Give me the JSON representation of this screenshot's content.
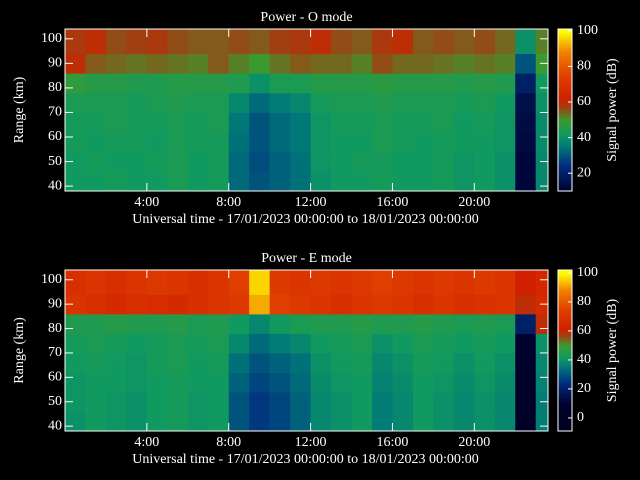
{
  "chart_data": [
    {
      "type": "heatmap",
      "title": "Power - O mode",
      "xlabel": "Universal time - 17/01/2023 00:00:00 to 18/01/2023 00:00:00",
      "ylabel": "Range (km)",
      "colorbar_label": "Signal power (dB)",
      "xlim": [
        0,
        23.6
      ],
      "xticks": [
        {
          "value": 4,
          "label": "4:00"
        },
        {
          "value": 8,
          "label": "8:00"
        },
        {
          "value": 12,
          "label": "12:00"
        },
        {
          "value": 16,
          "label": "16:00"
        },
        {
          "value": 20,
          "label": "20:00"
        }
      ],
      "ylim": [
        38,
        104
      ],
      "yticks": [
        40,
        50,
        60,
        70,
        80,
        90,
        100
      ],
      "zlim": [
        10,
        101
      ],
      "zticks": [
        20,
        40,
        60,
        80,
        100
      ],
      "colorscale": [
        [
          0,
          "#000020"
        ],
        [
          10,
          "#000030"
        ],
        [
          25,
          "#003080"
        ],
        [
          35,
          "#007878"
        ],
        [
          42,
          "#109a60"
        ],
        [
          50,
          "#3a9a30"
        ],
        [
          57,
          "#a04010"
        ],
        [
          62,
          "#d02000"
        ],
        [
          75,
          "#e04000"
        ],
        [
          88,
          "#f08000"
        ],
        [
          100,
          "#ffff00"
        ]
      ],
      "x_edges": [
        0,
        1,
        2,
        3,
        4,
        5,
        6,
        7,
        8,
        9,
        10,
        11,
        12,
        13,
        14,
        15,
        16,
        17,
        18,
        19,
        20,
        21,
        22,
        23,
        23.6
      ],
      "y_edges": [
        38,
        46,
        54,
        62,
        70,
        78,
        86,
        94,
        104
      ],
      "z": [
        [
          42,
          42,
          43,
          42,
          42,
          44,
          42,
          43,
          33,
          30,
          32,
          34,
          40,
          42,
          42,
          43,
          42,
          42,
          43,
          41,
          42,
          40,
          12,
          38
        ],
        [
          42,
          43,
          42,
          42,
          43,
          44,
          42,
          43,
          33,
          29,
          32,
          34,
          41,
          42,
          43,
          43,
          42,
          42,
          43,
          41,
          42,
          40,
          12,
          38
        ],
        [
          43,
          42,
          43,
          43,
          42,
          44,
          43,
          43,
          34,
          30,
          33,
          35,
          41,
          42,
          42,
          44,
          43,
          42,
          43,
          42,
          42,
          41,
          13,
          39
        ],
        [
          43,
          43,
          44,
          43,
          43,
          44,
          43,
          44,
          35,
          30,
          33,
          35,
          41,
          43,
          43,
          44,
          43,
          43,
          44,
          42,
          43,
          41,
          14,
          39
        ],
        [
          44,
          44,
          44,
          43,
          44,
          45,
          44,
          44,
          38,
          33,
          36,
          38,
          43,
          44,
          44,
          45,
          44,
          44,
          44,
          43,
          44,
          42,
          15,
          40
        ],
        [
          48,
          46,
          46,
          45,
          45,
          46,
          46,
          46,
          45,
          40,
          44,
          44,
          46,
          46,
          46,
          47,
          46,
          46,
          46,
          45,
          46,
          45,
          20,
          42
        ],
        [
          60,
          55,
          54,
          53,
          54,
          53,
          52,
          55,
          52,
          50,
          53,
          55,
          54,
          54,
          52,
          56,
          54,
          54,
          53,
          52,
          53,
          52,
          30,
          50
        ],
        [
          58,
          60,
          56,
          57,
          58,
          56,
          55,
          55,
          56,
          55,
          57,
          58,
          60,
          56,
          55,
          58,
          60,
          55,
          56,
          55,
          56,
          54,
          40,
          52
        ]
      ]
    },
    {
      "type": "heatmap",
      "title": "Power - E mode",
      "xlabel": "Universal time - 17/01/2023 00:00:00 to 18/01/2023 00:00:00",
      "ylabel": "Range (km)",
      "colorbar_label": "Signal power (dB)",
      "xlim": [
        0,
        23.6
      ],
      "xticks": [
        {
          "value": 4,
          "label": "4:00"
        },
        {
          "value": 8,
          "label": "8:00"
        },
        {
          "value": 12,
          "label": "12:00"
        },
        {
          "value": 16,
          "label": "16:00"
        },
        {
          "value": 20,
          "label": "20:00"
        }
      ],
      "ylim": [
        38,
        104
      ],
      "yticks": [
        40,
        50,
        60,
        70,
        80,
        90,
        100
      ],
      "zlim": [
        -9,
        102
      ],
      "zticks": [
        0,
        20,
        40,
        60,
        80,
        100
      ],
      "colorscale": [
        [
          0,
          "#000020"
        ],
        [
          10,
          "#000030"
        ],
        [
          25,
          "#003080"
        ],
        [
          35,
          "#007878"
        ],
        [
          42,
          "#109a60"
        ],
        [
          50,
          "#3a9a30"
        ],
        [
          57,
          "#a04010"
        ],
        [
          62,
          "#d02000"
        ],
        [
          75,
          "#e04000"
        ],
        [
          88,
          "#f08000"
        ],
        [
          100,
          "#ffff00"
        ]
      ],
      "x_edges": [
        0,
        1,
        2,
        3,
        4,
        5,
        6,
        7,
        8,
        9,
        10,
        11,
        12,
        13,
        14,
        15,
        16,
        17,
        18,
        19,
        20,
        21,
        22,
        23,
        23.6
      ],
      "y_edges": [
        38,
        46,
        54,
        62,
        70,
        78,
        86,
        94,
        104
      ],
      "z": [
        [
          40,
          42,
          41,
          40,
          42,
          43,
          41,
          42,
          30,
          26,
          28,
          32,
          38,
          40,
          42,
          36,
          38,
          42,
          40,
          38,
          40,
          38,
          5,
          36
        ],
        [
          41,
          42,
          41,
          40,
          42,
          43,
          41,
          42,
          30,
          26,
          28,
          32,
          38,
          40,
          42,
          36,
          38,
          42,
          40,
          38,
          40,
          38,
          5,
          36
        ],
        [
          41,
          42,
          42,
          41,
          42,
          43,
          42,
          42,
          32,
          28,
          30,
          33,
          39,
          41,
          42,
          37,
          39,
          42,
          41,
          39,
          41,
          39,
          6,
          37
        ],
        [
          42,
          43,
          42,
          41,
          43,
          44,
          42,
          43,
          34,
          30,
          32,
          34,
          40,
          42,
          43,
          38,
          40,
          43,
          42,
          40,
          42,
          40,
          8,
          38
        ],
        [
          43,
          44,
          43,
          42,
          43,
          44,
          43,
          44,
          38,
          33,
          36,
          38,
          42,
          43,
          44,
          40,
          42,
          44,
          43,
          42,
          43,
          42,
          10,
          40
        ],
        [
          45,
          45,
          46,
          45,
          45,
          46,
          44,
          45,
          42,
          38,
          42,
          44,
          45,
          45,
          46,
          45,
          45,
          46,
          45,
          44,
          45,
          44,
          20,
          60
        ],
        [
          70,
          68,
          66,
          68,
          67,
          66,
          68,
          70,
          72,
          92,
          74,
          72,
          70,
          68,
          70,
          72,
          70,
          68,
          70,
          68,
          69,
          70,
          60,
          66
        ],
        [
          68,
          70,
          68,
          70,
          72,
          70,
          68,
          70,
          74,
          96,
          72,
          70,
          72,
          70,
          72,
          74,
          72,
          70,
          72,
          70,
          72,
          70,
          62,
          65
        ]
      ]
    }
  ]
}
